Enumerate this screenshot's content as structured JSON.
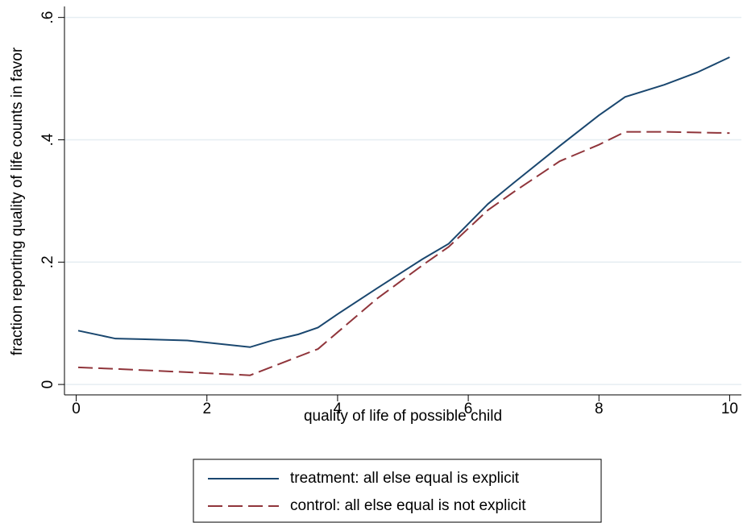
{
  "chart_data": {
    "type": "line",
    "xlabel": "quality of life of possible child",
    "ylabel": "fraction reporting quality of life counts in favor",
    "xlim": [
      -0.18,
      10.18
    ],
    "xticks": [
      0,
      2,
      4,
      6,
      8,
      10
    ],
    "ylim": [
      -0.017,
      0.618
    ],
    "yticks": [
      0,
      {
        "value": 0.2,
        "label": ".2"
      },
      {
        "value": 0.4,
        "label": ".4"
      },
      {
        "value": 0.6,
        "label": ".6"
      }
    ],
    "grid": true,
    "series": [
      {
        "name": "treatment: all else equal is explicit",
        "color": "#1a476f",
        "dash": "solid",
        "x": [
          0.03,
          0.6,
          1,
          1.7,
          2.66,
          3,
          3.4,
          3.7,
          4,
          4.6,
          5.3,
          5.7,
          6.3,
          6.7,
          7.4,
          8,
          8.4,
          9,
          9.5,
          10
        ],
        "values": [
          0.088,
          0.075,
          0.074,
          0.072,
          0.061,
          0.072,
          0.082,
          0.093,
          0.115,
          0.157,
          0.205,
          0.23,
          0.295,
          0.33,
          0.39,
          0.44,
          0.47,
          0.49,
          0.51,
          0.535
        ]
      },
      {
        "name": "control: all else equal is not explicit",
        "color": "#90353b",
        "dash": "dashed",
        "x": [
          0.03,
          0.7,
          1.7,
          2.66,
          3.7,
          4.6,
          5.3,
          5.7,
          6.3,
          6.7,
          7.4,
          8,
          8.4,
          9,
          10
        ],
        "values": [
          0.028,
          0.025,
          0.02,
          0.015,
          0.058,
          0.14,
          0.195,
          0.225,
          0.285,
          0.315,
          0.365,
          0.392,
          0.413,
          0.413,
          0.411
        ]
      }
    ]
  }
}
